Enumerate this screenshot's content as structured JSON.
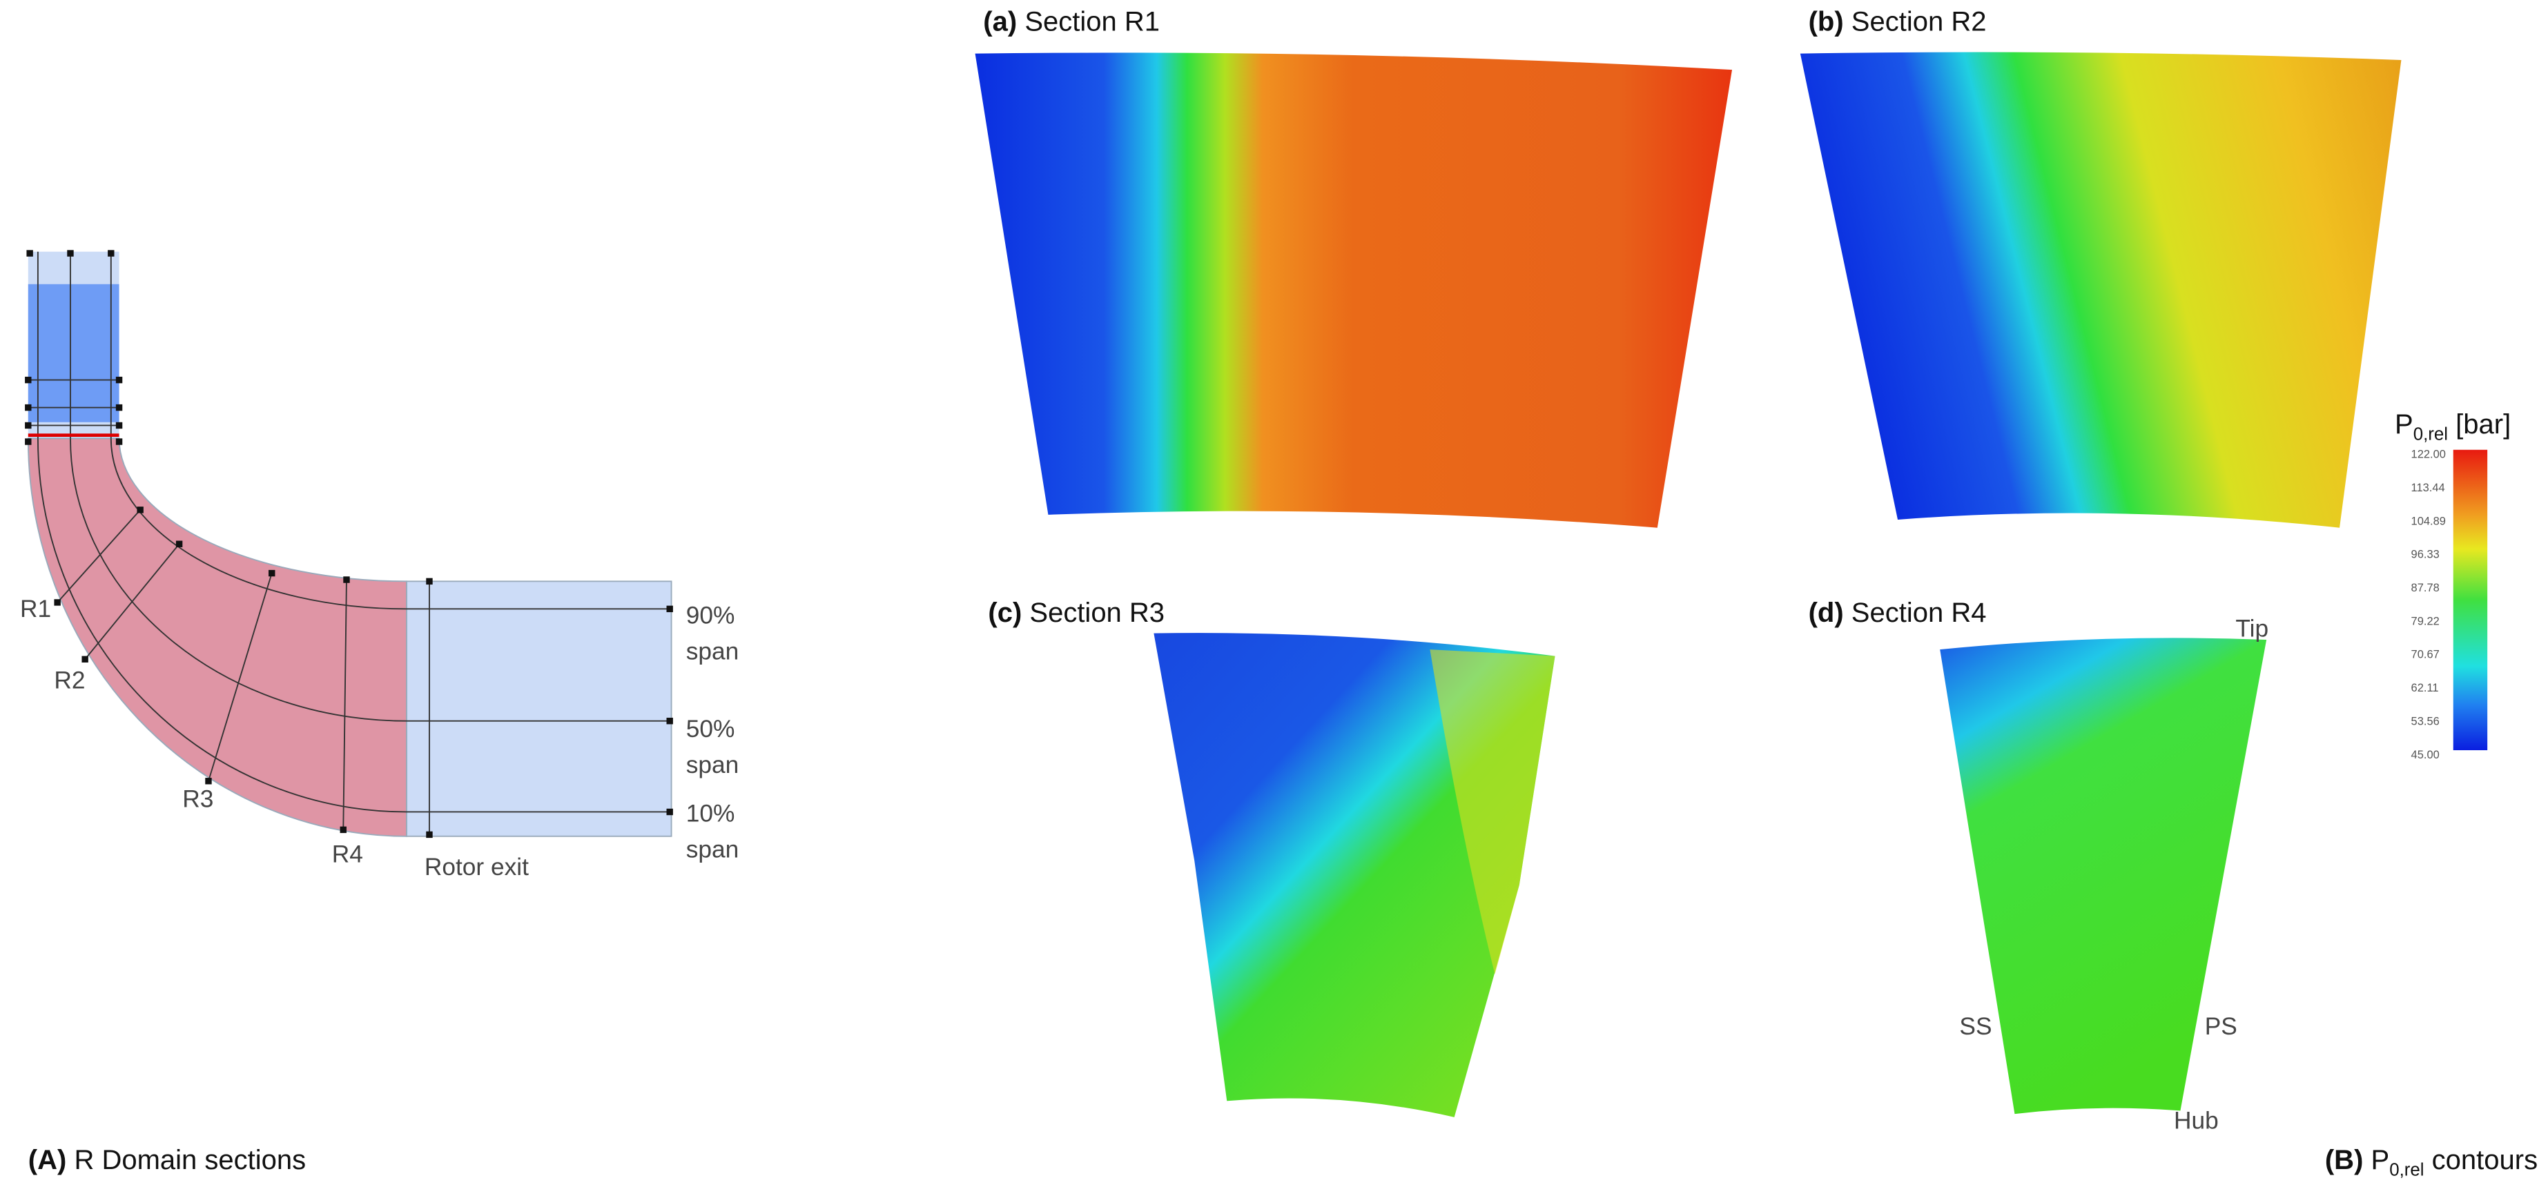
{
  "panel_A": {
    "label": "(A)",
    "caption": "R Domain sections",
    "sections": [
      "R1",
      "R2",
      "R3",
      "R4"
    ],
    "rotor_exit": "Rotor exit",
    "spans": [
      {
        "pct": "90%",
        "word": "span"
      },
      {
        "pct": "50%",
        "word": "span"
      },
      {
        "pct": "10%",
        "word": "span"
      }
    ]
  },
  "panel_B": {
    "label": "(B)",
    "caption_base": "P",
    "caption_sub": "0,rel",
    "caption_rest": " contours",
    "contours": [
      {
        "letter": "(a)",
        "title": "Section R1"
      },
      {
        "letter": "(b)",
        "title": "Section R2"
      },
      {
        "letter": "(c)",
        "title": "Section R3"
      },
      {
        "letter": "(d)",
        "title": "Section R4"
      }
    ],
    "annotations": {
      "tip": "Tip",
      "ss": "SS",
      "ps": "PS",
      "hub": "Hub"
    },
    "colorbar": {
      "base": "P",
      "sub": "0,rel",
      "unit": " [bar]",
      "ticks": [
        "122.00",
        "113.44",
        "104.89",
        "96.33",
        "87.78",
        "79.22",
        "70.67",
        "62.11",
        "53.56",
        "45.00"
      ]
    }
  }
}
